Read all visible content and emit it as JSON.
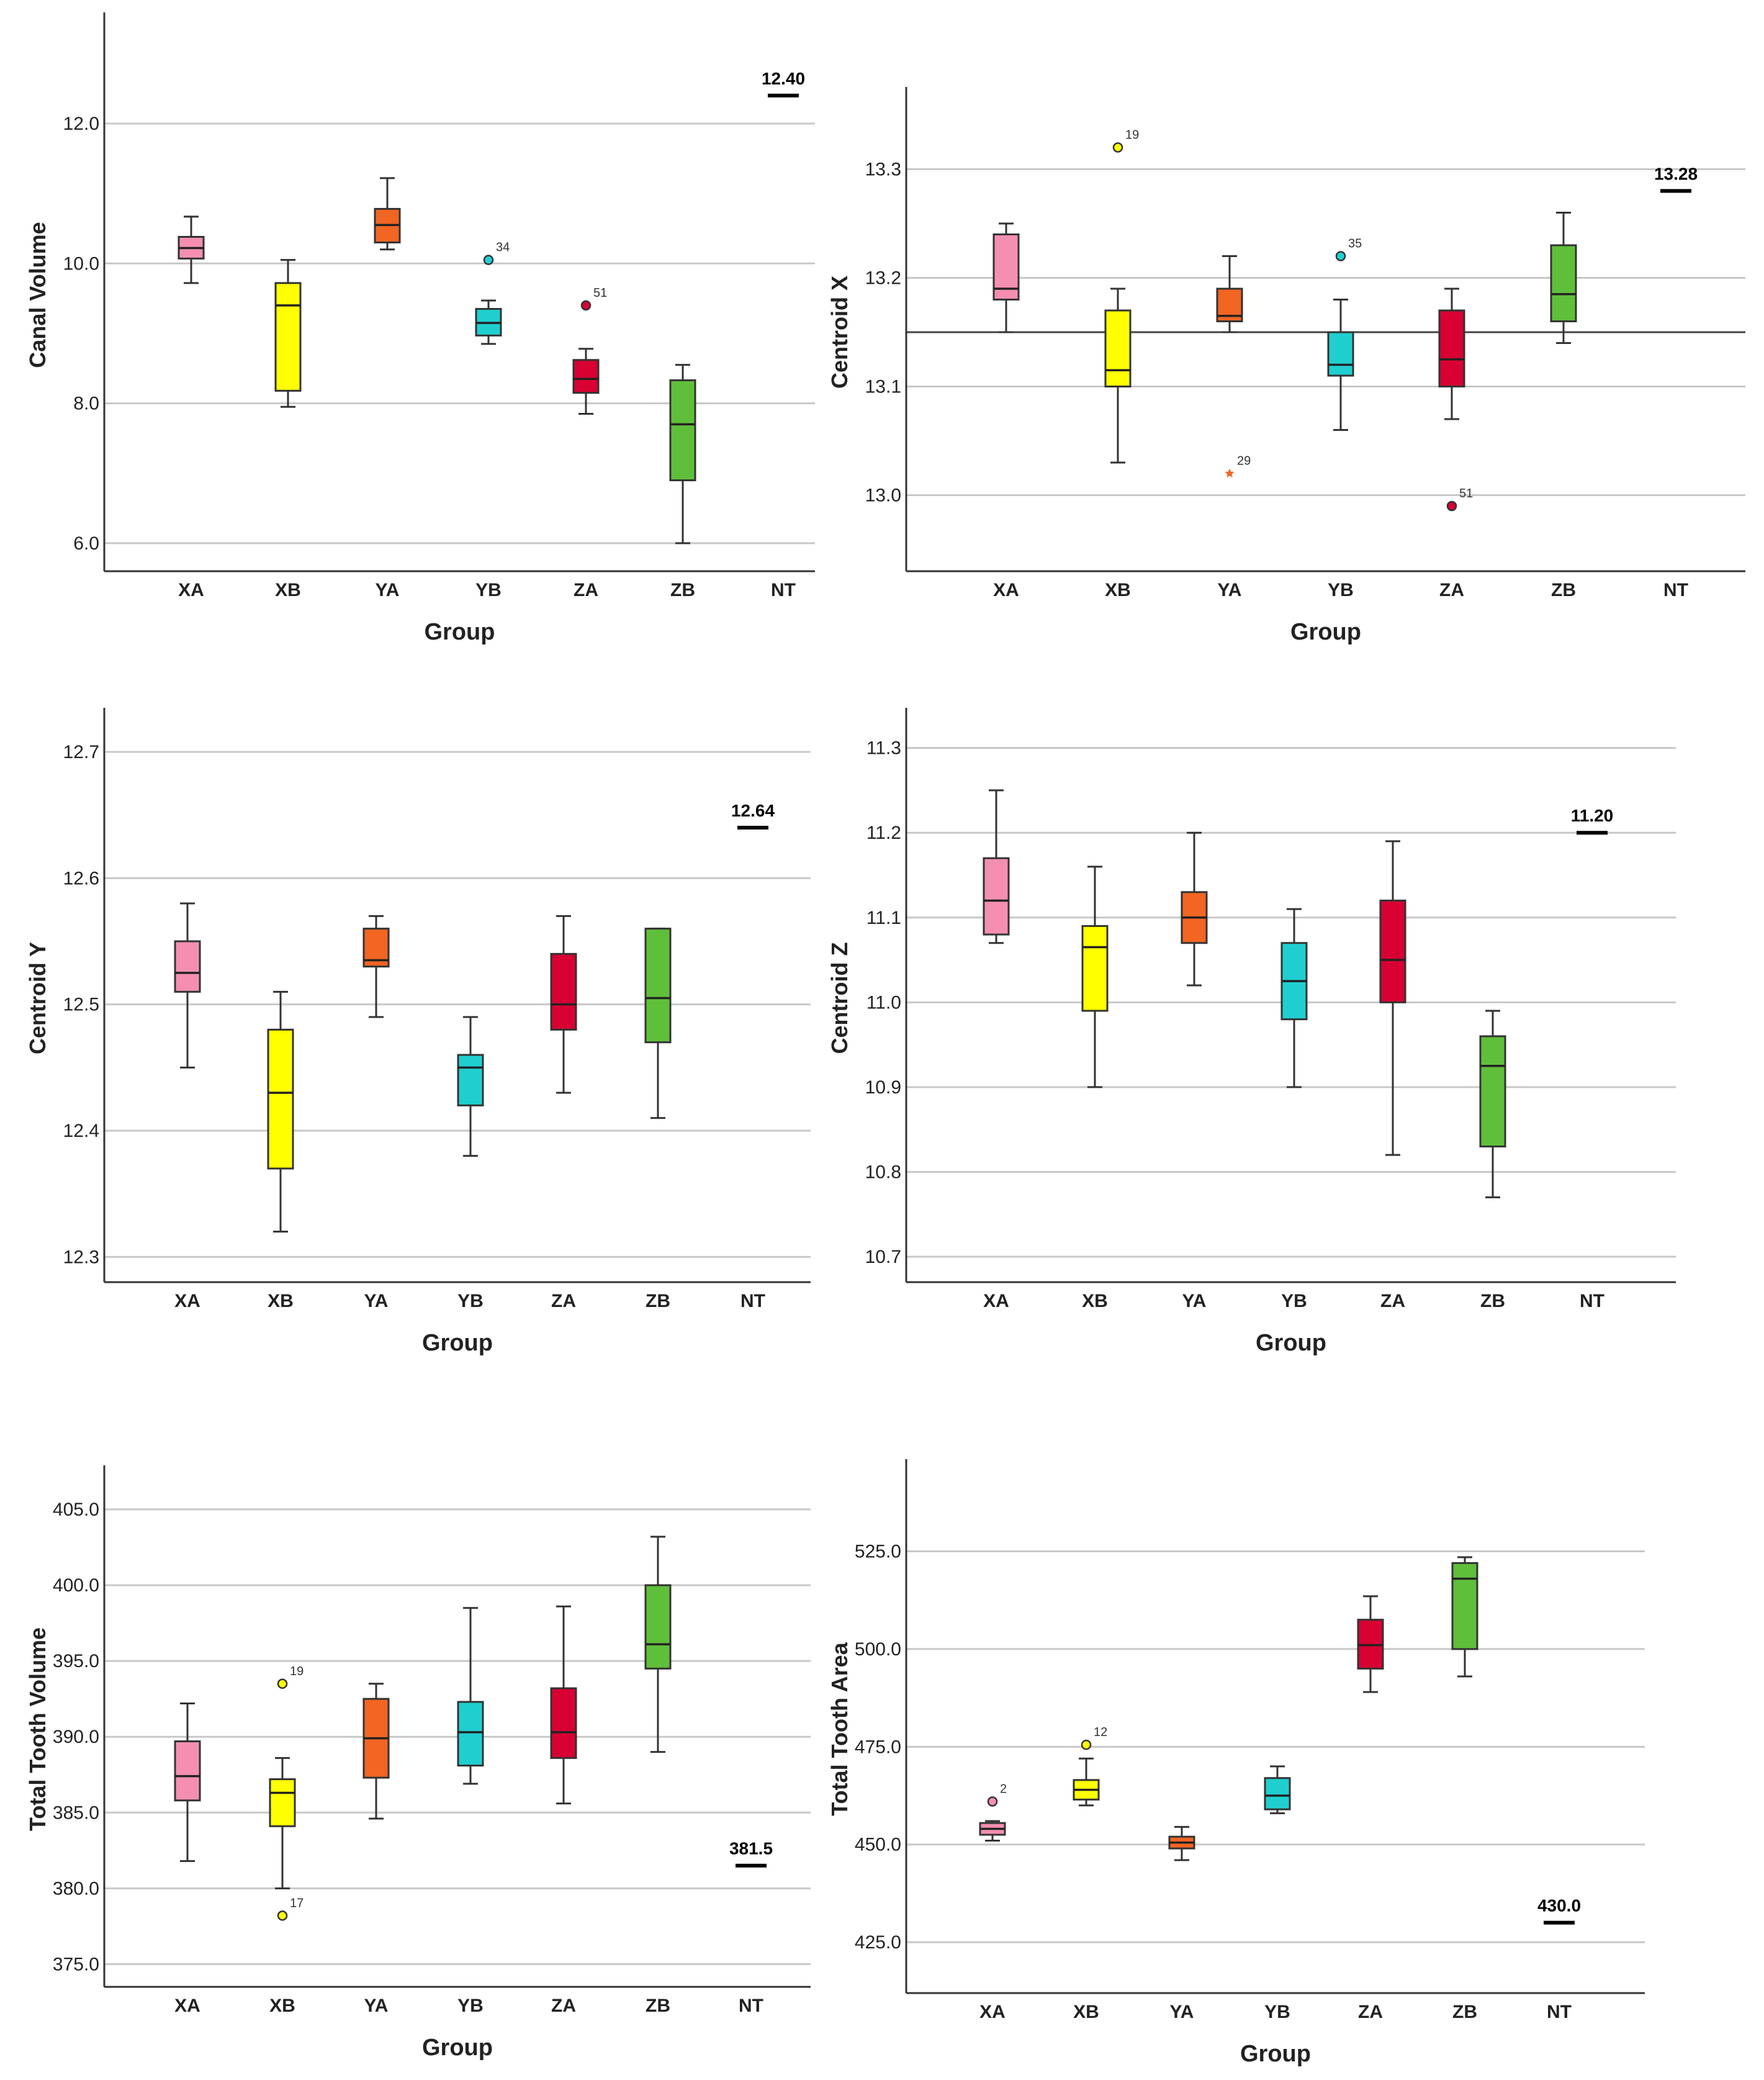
{
  "chart_data": [
    {
      "type": "boxplot",
      "xlabel": "Group",
      "ylabel": "Canal Volume",
      "categories": [
        "XA",
        "XB",
        "YA",
        "YB",
        "ZA",
        "ZB",
        "NT"
      ],
      "ylim": [
        5.6,
        13.5
      ],
      "yticks": [
        6.0,
        8.0,
        10.0,
        12.0
      ],
      "ytick_labels": [
        "6.0",
        "8.0",
        "10.0",
        "12.0"
      ],
      "grid": true,
      "reference_line": null,
      "boxes": [
        {
          "group": "XA",
          "color": "#f48fb1",
          "whisker_low": 9.72,
          "q1": 10.07,
          "median": 10.22,
          "q3": 10.38,
          "whisker_high": 10.67
        },
        {
          "group": "XB",
          "color": "#ffff00",
          "whisker_low": 7.95,
          "q1": 8.18,
          "median": 9.4,
          "q3": 9.72,
          "whisker_high": 10.05
        },
        {
          "group": "YA",
          "color": "#f26522",
          "whisker_low": 10.2,
          "q1": 10.3,
          "median": 10.55,
          "q3": 10.78,
          "whisker_high": 11.22
        },
        {
          "group": "YB",
          "color": "#1fcfd0",
          "whisker_low": 8.85,
          "q1": 8.97,
          "median": 9.15,
          "q3": 9.35,
          "whisker_high": 9.47
        },
        {
          "group": "ZA",
          "color": "#d80032",
          "whisker_low": 7.85,
          "q1": 8.15,
          "median": 8.35,
          "q3": 8.62,
          "whisker_high": 8.78
        },
        {
          "group": "ZB",
          "color": "#5fbf3a",
          "whisker_low": 6.0,
          "q1": 6.9,
          "median": 7.7,
          "q3": 8.33,
          "whisker_high": 8.55
        }
      ],
      "outliers": [
        {
          "group": "YB",
          "value": 10.05,
          "label": "34",
          "marker": "circle",
          "color": "#1fcfd0"
        },
        {
          "group": "ZA",
          "value": 9.4,
          "label": "51",
          "marker": "circle",
          "color": "#d80032"
        }
      ],
      "nt": {
        "group": "NT",
        "value": 12.4,
        "label": "12.40"
      }
    },
    {
      "type": "boxplot",
      "xlabel": "Group",
      "ylabel": "Centroid X",
      "categories": [
        "XA",
        "XB",
        "YA",
        "YB",
        "ZA",
        "ZB",
        "NT"
      ],
      "ylim": [
        12.93,
        13.37
      ],
      "yticks": [
        13.0,
        13.1,
        13.2,
        13.3
      ],
      "ytick_labels": [
        "13.0",
        "13.1",
        "13.2",
        "13.3"
      ],
      "grid": true,
      "reference_line": 13.15,
      "boxes": [
        {
          "group": "XA",
          "color": "#f48fb1",
          "whisker_low": 13.15,
          "q1": 13.18,
          "median": 13.19,
          "q3": 13.24,
          "whisker_high": 13.25
        },
        {
          "group": "XB",
          "color": "#ffff00",
          "whisker_low": 13.03,
          "q1": 13.1,
          "median": 13.115,
          "q3": 13.17,
          "whisker_high": 13.19
        },
        {
          "group": "YA",
          "color": "#f26522",
          "whisker_low": 13.15,
          "q1": 13.16,
          "median": 13.165,
          "q3": 13.19,
          "whisker_high": 13.22
        },
        {
          "group": "YB",
          "color": "#1fcfd0",
          "whisker_low": 13.06,
          "q1": 13.11,
          "median": 13.12,
          "q3": 13.15,
          "whisker_high": 13.18
        },
        {
          "group": "ZA",
          "color": "#d80032",
          "whisker_low": 13.07,
          "q1": 13.1,
          "median": 13.125,
          "q3": 13.17,
          "whisker_high": 13.19
        },
        {
          "group": "ZB",
          "color": "#5fbf3a",
          "whisker_low": 13.14,
          "q1": 13.16,
          "median": 13.185,
          "q3": 13.23,
          "whisker_high": 13.26
        }
      ],
      "outliers": [
        {
          "group": "XB",
          "value": 13.32,
          "label": "19",
          "marker": "circle",
          "color": "#ffff00"
        },
        {
          "group": "YB",
          "value": 13.22,
          "label": "35",
          "marker": "circle",
          "color": "#1fcfd0"
        },
        {
          "group": "YA",
          "value": 13.02,
          "label": "29",
          "marker": "star",
          "color": "#f26522"
        },
        {
          "group": "ZA",
          "value": 12.99,
          "label": "51",
          "marker": "circle",
          "color": "#d80032"
        }
      ],
      "nt": {
        "group": "NT",
        "value": 13.28,
        "label": "13.28"
      }
    },
    {
      "type": "boxplot",
      "xlabel": "Group",
      "ylabel": "Centroid Y",
      "categories": [
        "XA",
        "XB",
        "YA",
        "YB",
        "ZA",
        "ZB",
        "NT"
      ],
      "ylim": [
        12.28,
        12.73
      ],
      "yticks": [
        12.3,
        12.4,
        12.5,
        12.6,
        12.7
      ],
      "ytick_labels": [
        "12.3",
        "12.4",
        "12.5",
        "12.6",
        "12.7"
      ],
      "grid": true,
      "reference_line": null,
      "boxes": [
        {
          "group": "XA",
          "color": "#f48fb1",
          "whisker_low": 12.45,
          "q1": 12.51,
          "median": 12.525,
          "q3": 12.55,
          "whisker_high": 12.58
        },
        {
          "group": "XB",
          "color": "#ffff00",
          "whisker_low": 12.32,
          "q1": 12.37,
          "median": 12.43,
          "q3": 12.48,
          "whisker_high": 12.51
        },
        {
          "group": "YA",
          "color": "#f26522",
          "whisker_low": 12.49,
          "q1": 12.53,
          "median": 12.535,
          "q3": 12.56,
          "whisker_high": 12.57
        },
        {
          "group": "YB",
          "color": "#1fcfd0",
          "whisker_low": 12.38,
          "q1": 12.42,
          "median": 12.45,
          "q3": 12.46,
          "whisker_high": 12.49
        },
        {
          "group": "ZA",
          "color": "#d80032",
          "whisker_low": 12.43,
          "q1": 12.48,
          "median": 12.5,
          "q3": 12.54,
          "whisker_high": 12.57
        },
        {
          "group": "ZB",
          "color": "#5fbf3a",
          "whisker_low": 12.41,
          "q1": 12.47,
          "median": 12.505,
          "q3": 12.56,
          "whisker_high": 12.56
        }
      ],
      "outliers": [],
      "nt": {
        "group": "NT",
        "value": 12.64,
        "label": "12.64"
      }
    },
    {
      "type": "boxplot",
      "xlabel": "Group",
      "ylabel": "Centroid Z",
      "categories": [
        "XA",
        "XB",
        "YA",
        "YB",
        "ZA",
        "ZB",
        "NT"
      ],
      "ylim": [
        10.67,
        11.34
      ],
      "yticks": [
        10.7,
        10.8,
        10.9,
        11.0,
        11.1,
        11.2,
        11.3
      ],
      "ytick_labels": [
        "10.7",
        "10.8",
        "10.9",
        "11.0",
        "11.1",
        "11.2",
        "11.3"
      ],
      "grid": true,
      "reference_line": null,
      "boxes": [
        {
          "group": "XA",
          "color": "#f48fb1",
          "whisker_low": 11.07,
          "q1": 11.08,
          "median": 11.12,
          "q3": 11.17,
          "whisker_high": 11.25
        },
        {
          "group": "XB",
          "color": "#ffff00",
          "whisker_low": 10.9,
          "q1": 10.99,
          "median": 11.065,
          "q3": 11.09,
          "whisker_high": 11.16
        },
        {
          "group": "YA",
          "color": "#f26522",
          "whisker_low": 11.02,
          "q1": 11.07,
          "median": 11.1,
          "q3": 11.13,
          "whisker_high": 11.2
        },
        {
          "group": "YB",
          "color": "#1fcfd0",
          "whisker_low": 10.9,
          "q1": 10.98,
          "median": 11.025,
          "q3": 11.07,
          "whisker_high": 11.11
        },
        {
          "group": "ZA",
          "color": "#d80032",
          "whisker_low": 10.82,
          "q1": 11.0,
          "median": 11.05,
          "q3": 11.12,
          "whisker_high": 11.19
        },
        {
          "group": "ZB",
          "color": "#5fbf3a",
          "whisker_low": 10.77,
          "q1": 10.83,
          "median": 10.925,
          "q3": 10.96,
          "whisker_high": 10.99
        }
      ],
      "outliers": [],
      "nt": {
        "group": "NT",
        "value": 11.2,
        "label": "11.20"
      }
    },
    {
      "type": "boxplot",
      "xlabel": "Group",
      "ylabel": "Total Tooth Volume",
      "categories": [
        "XA",
        "XB",
        "YA",
        "YB",
        "ZA",
        "ZB",
        "NT"
      ],
      "ylim": [
        373.5,
        407.5
      ],
      "yticks": [
        375.0,
        380.0,
        385.0,
        390.0,
        395.0,
        400.0,
        405.0
      ],
      "ytick_labels": [
        "375.0",
        "380.0",
        "385.0",
        "390.0",
        "395.0",
        "400.0",
        "405.0"
      ],
      "grid": true,
      "reference_line": null,
      "boxes": [
        {
          "group": "XA",
          "color": "#f48fb1",
          "whisker_low": 381.8,
          "q1": 385.8,
          "median": 387.4,
          "q3": 389.7,
          "whisker_high": 392.2
        },
        {
          "group": "XB",
          "color": "#ffff00",
          "whisker_low": 380.0,
          "q1": 384.1,
          "median": 386.3,
          "q3": 387.2,
          "whisker_high": 388.6
        },
        {
          "group": "YA",
          "color": "#f26522",
          "whisker_low": 384.6,
          "q1": 387.3,
          "median": 389.9,
          "q3": 392.5,
          "whisker_high": 393.5
        },
        {
          "group": "YB",
          "color": "#1fcfd0",
          "whisker_low": 386.9,
          "q1": 388.1,
          "median": 390.3,
          "q3": 392.3,
          "whisker_high": 398.5
        },
        {
          "group": "ZA",
          "color": "#d80032",
          "whisker_low": 385.6,
          "q1": 388.6,
          "median": 390.3,
          "q3": 393.2,
          "whisker_high": 398.6
        },
        {
          "group": "ZB",
          "color": "#5fbf3a",
          "whisker_low": 389.0,
          "q1": 394.5,
          "median": 396.1,
          "q3": 400.0,
          "whisker_high": 403.2
        }
      ],
      "outliers": [
        {
          "group": "XB",
          "value": 393.5,
          "label": "19",
          "marker": "circle",
          "color": "#ffff00"
        },
        {
          "group": "XB",
          "value": 378.2,
          "label": "17",
          "marker": "circle",
          "color": "#ffff00"
        }
      ],
      "nt": {
        "group": "NT",
        "value": 381.5,
        "label": "381.5"
      }
    },
    {
      "type": "boxplot",
      "xlabel": "Group",
      "ylabel": "Total Tooth Area",
      "categories": [
        "XA",
        "XB",
        "YA",
        "YB",
        "ZA",
        "ZB",
        "NT"
      ],
      "ylim": [
        412.0,
        547.0
      ],
      "yticks": [
        425.0,
        450.0,
        475.0,
        500.0,
        525.0
      ],
      "ytick_labels": [
        "425.0",
        "450.0",
        "475.0",
        "500.0",
        "525.0"
      ],
      "grid": true,
      "reference_line": null,
      "boxes": [
        {
          "group": "XA",
          "color": "#f48fb1",
          "whisker_low": 451.0,
          "q1": 452.5,
          "median": 454.0,
          "q3": 455.5,
          "whisker_high": 456.0
        },
        {
          "group": "XB",
          "color": "#ffff00",
          "whisker_low": 460.0,
          "q1": 461.5,
          "median": 464.0,
          "q3": 466.5,
          "whisker_high": 472.0
        },
        {
          "group": "YA",
          "color": "#f26522",
          "whisker_low": 446.0,
          "q1": 449.0,
          "median": 450.5,
          "q3": 452.0,
          "whisker_high": 454.5
        },
        {
          "group": "YB",
          "color": "#1fcfd0",
          "whisker_low": 458.0,
          "q1": 459.0,
          "median": 462.5,
          "q3": 467.0,
          "whisker_high": 470.0
        },
        {
          "group": "ZA",
          "color": "#d80032",
          "whisker_low": 489.0,
          "q1": 495.0,
          "median": 501.0,
          "q3": 507.5,
          "whisker_high": 513.5
        },
        {
          "group": "ZB",
          "color": "#5fbf3a",
          "whisker_low": 493.0,
          "q1": 500.0,
          "median": 518.0,
          "q3": 522.0,
          "whisker_high": 523.5
        }
      ],
      "outliers": [
        {
          "group": "XA",
          "value": 461.0,
          "label": "2",
          "marker": "circle",
          "color": "#f48fb1"
        },
        {
          "group": "XB",
          "value": 475.5,
          "label": "12",
          "marker": "circle",
          "color": "#ffff00"
        }
      ],
      "nt": {
        "group": "NT",
        "value": 430.0,
        "label": "430.0"
      }
    }
  ]
}
